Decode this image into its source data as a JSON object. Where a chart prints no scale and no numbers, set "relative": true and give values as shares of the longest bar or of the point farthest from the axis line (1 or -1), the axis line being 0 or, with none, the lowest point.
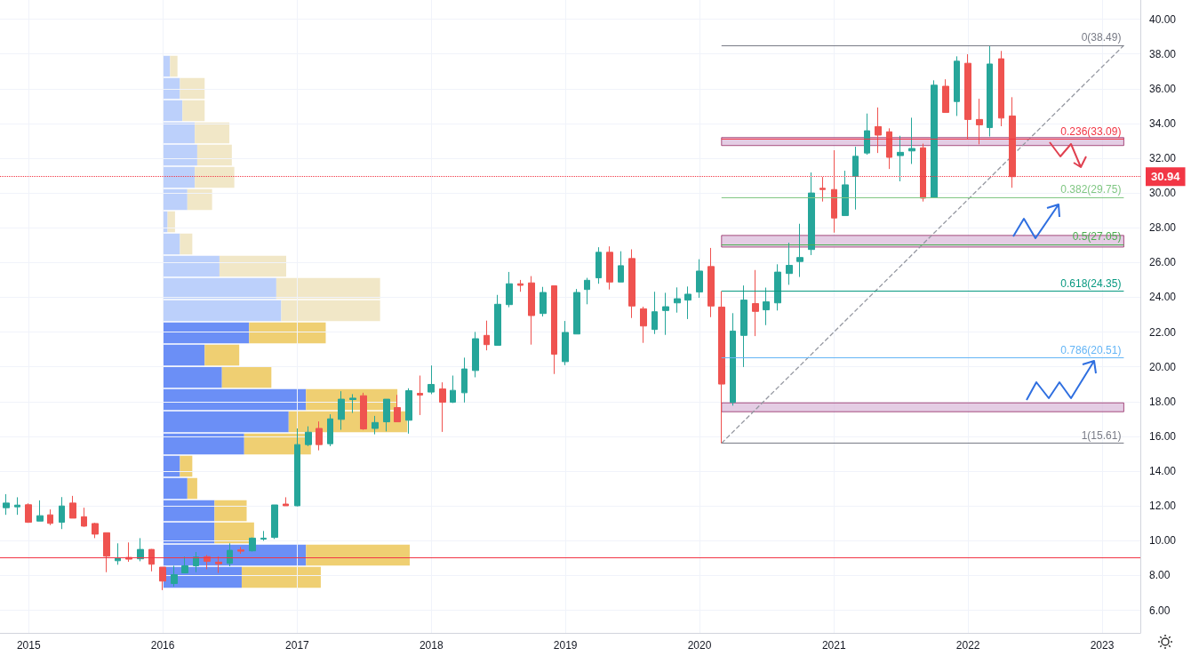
{
  "chart_data": [
    {
      "type": "candlestick",
      "x": [
        "2014-11",
        "2014-12",
        "2015-01",
        "2015-02",
        "2015-03",
        "2015-04",
        "2015-05",
        "2015-06",
        "2015-07",
        "2015-08",
        "2015-09",
        "2015-10",
        "2015-11",
        "2015-12",
        "2016-01",
        "2016-02",
        "2016-03",
        "2016-04",
        "2016-05",
        "2016-06",
        "2016-07",
        "2016-08",
        "2016-09",
        "2016-10",
        "2016-11",
        "2016-12",
        "2017-01",
        "2017-02",
        "2017-03",
        "2017-04",
        "2017-05",
        "2017-06",
        "2017-07",
        "2017-08",
        "2017-09",
        "2017-10",
        "2017-11",
        "2017-12",
        "2018-01",
        "2018-02",
        "2018-03",
        "2018-04",
        "2018-05",
        "2018-06",
        "2018-07",
        "2018-08",
        "2018-09",
        "2018-10",
        "2018-11",
        "2018-12",
        "2019-01",
        "2019-02",
        "2019-03",
        "2019-04",
        "2019-05",
        "2019-06",
        "2019-07",
        "2019-08",
        "2019-09",
        "2019-10",
        "2019-11",
        "2019-12",
        "2020-01",
        "2020-02",
        "2020-03",
        "2020-04",
        "2020-05",
        "2020-06",
        "2020-07",
        "2020-08",
        "2020-09",
        "2020-10",
        "2020-11",
        "2020-12",
        "2021-01",
        "2021-02",
        "2021-03",
        "2021-04",
        "2021-05",
        "2021-06",
        "2021-07",
        "2021-08",
        "2021-09",
        "2021-10",
        "2021-11",
        "2021-12",
        "2022-01",
        "2022-02",
        "2022-03",
        "2022-04",
        "2022-05"
      ],
      "ohlc": [
        [
          11.9,
          12.68,
          11.49,
          12.17
        ],
        [
          11.95,
          12.5,
          11.49,
          12.05
        ],
        [
          12.07,
          12.15,
          11.03,
          11.06
        ],
        [
          11.13,
          12.32,
          11.13,
          11.44
        ],
        [
          11.49,
          11.8,
          10.9,
          11.0
        ],
        [
          11.06,
          12.51,
          10.67,
          12.0
        ],
        [
          12.17,
          12.58,
          11.3,
          11.3
        ],
        [
          11.38,
          11.9,
          10.8,
          10.84
        ],
        [
          10.99,
          11.03,
          10.15,
          10.38
        ],
        [
          10.46,
          10.46,
          8.19,
          9.11
        ],
        [
          8.85,
          9.85,
          8.62,
          8.99
        ],
        [
          9.04,
          9.9,
          8.79,
          8.94
        ],
        [
          8.96,
          10.15,
          8.82,
          9.5
        ],
        [
          9.5,
          9.52,
          8.24,
          8.65
        ],
        [
          8.48,
          8.48,
          7.16,
          7.68
        ],
        [
          7.54,
          8.56,
          7.37,
          8.05
        ],
        [
          8.15,
          9.08,
          8.15,
          8.56
        ],
        [
          8.56,
          9.35,
          8.19,
          9.06
        ],
        [
          9.08,
          9.18,
          8.36,
          8.82
        ],
        [
          8.77,
          9.1,
          8.15,
          8.68
        ],
        [
          8.7,
          9.85,
          8.53,
          9.45
        ],
        [
          9.47,
          9.64,
          9.25,
          9.4
        ],
        [
          9.42,
          10.19,
          9.38,
          10.15
        ],
        [
          10.09,
          10.56,
          10.0,
          10.15
        ],
        [
          10.19,
          12.06,
          10.1,
          12.06
        ],
        [
          12.11,
          12.5,
          12.01,
          12.01
        ],
        [
          12.01,
          16.46,
          11.98,
          15.53
        ],
        [
          15.53,
          16.58,
          15.44,
          16.24
        ],
        [
          16.46,
          16.86,
          15.2,
          15.53
        ],
        [
          15.58,
          17.27,
          15.44,
          17.01
        ],
        [
          16.98,
          18.6,
          16.38,
          18.14
        ],
        [
          18.12,
          18.43,
          17.35,
          18.2
        ],
        [
          18.34,
          18.51,
          16.38,
          16.43
        ],
        [
          16.46,
          17.18,
          16.12,
          16.8
        ],
        [
          16.84,
          18.14,
          16.29,
          18.14
        ],
        [
          17.66,
          18.39,
          16.84,
          16.84
        ],
        [
          16.93,
          18.77,
          16.16,
          18.63
        ],
        [
          18.48,
          19.5,
          17.23,
          18.38
        ],
        [
          18.55,
          20.08,
          18.43,
          18.99
        ],
        [
          18.73,
          19.11,
          16.26,
          17.97
        ],
        [
          17.97,
          19.5,
          17.92,
          18.65
        ],
        [
          18.51,
          20.53,
          17.95,
          19.88
        ],
        [
          19.79,
          22.01,
          19.4,
          21.62
        ],
        [
          21.81,
          22.66,
          20.95,
          21.28
        ],
        [
          21.24,
          24.14,
          21.24,
          23.6
        ],
        [
          23.58,
          25.46,
          23.43,
          24.78
        ],
        [
          24.78,
          25.0,
          24.32,
          24.69
        ],
        [
          24.83,
          25.22,
          21.28,
          22.95
        ],
        [
          23.07,
          24.6,
          22.9,
          24.28
        ],
        [
          24.66,
          24.66,
          19.59,
          20.73
        ],
        [
          20.3,
          22.64,
          20.1,
          21.98
        ],
        [
          21.89,
          24.48,
          21.89,
          24.28
        ],
        [
          24.45,
          25.12,
          23.6,
          24.98
        ],
        [
          25.12,
          26.88,
          24.78,
          26.59
        ],
        [
          26.59,
          26.93,
          24.45,
          24.88
        ],
        [
          24.88,
          26.65,
          24.88,
          25.82
        ],
        [
          26.23,
          26.76,
          22.81,
          23.5
        ],
        [
          23.34,
          23.46,
          21.38,
          22.35
        ],
        [
          22.15,
          24.32,
          21.89,
          23.17
        ],
        [
          23.24,
          24.26,
          21.84,
          23.46
        ],
        [
          23.68,
          24.57,
          23.12,
          23.92
        ],
        [
          23.84,
          24.62,
          22.75,
          24.18
        ],
        [
          24.31,
          26.19,
          23.97,
          25.51
        ],
        [
          25.77,
          26.84,
          22.86,
          23.5
        ],
        [
          23.44,
          24.35,
          15.61,
          19.01
        ],
        [
          17.96,
          23.09,
          17.77,
          22.06
        ],
        [
          21.81,
          24.68,
          19.99,
          23.84
        ],
        [
          23.64,
          25.57,
          21.77,
          23.19
        ],
        [
          23.28,
          24.56,
          22.4,
          23.74
        ],
        [
          23.68,
          25.9,
          23.24,
          25.45
        ],
        [
          25.37,
          27.14,
          24.72,
          25.84
        ],
        [
          26.06,
          28.23,
          25.17,
          26.29
        ],
        [
          26.75,
          31.18,
          26.43,
          30.0
        ],
        [
          30.27,
          30.92,
          29.51,
          30.2
        ],
        [
          30.2,
          32.46,
          27.72,
          28.56
        ],
        [
          28.7,
          31.28,
          28.7,
          30.47
        ],
        [
          30.96,
          32.66,
          29.05,
          32.11
        ],
        [
          32.3,
          34.57,
          32.2,
          33.58
        ],
        [
          33.82,
          34.92,
          32.3,
          33.33
        ],
        [
          33.52,
          33.72,
          31.38,
          32.05
        ],
        [
          32.15,
          33.29,
          30.67,
          32.34
        ],
        [
          32.42,
          34.33,
          31.67,
          32.56
        ],
        [
          32.6,
          32.84,
          29.51,
          29.7
        ],
        [
          29.75,
          36.48,
          29.75,
          36.2
        ],
        [
          36.14,
          36.54,
          34.63,
          34.63
        ],
        [
          35.26,
          37.86,
          34.43,
          37.58
        ],
        [
          37.46,
          37.98,
          33.09,
          34.23
        ],
        [
          34.23,
          35.42,
          32.8,
          33.92
        ],
        [
          33.76,
          38.49,
          33.25,
          37.42
        ],
        [
          37.72,
          38.17,
          33.84,
          34.31
        ],
        [
          34.43,
          35.51,
          30.3,
          30.94
        ]
      ],
      "series": [
        {
          "type": "line",
          "x": [
            "2020-03",
            "2023-03"
          ],
          "values": [
            15.61,
            38.49
          ],
          "color": "#9598a1",
          "line_style": "dashed",
          "marker": "none"
        }
      ],
      "xlim": [
        "2014-10-15",
        "2023-04-15"
      ],
      "xticks": [
        {
          "value": "2015",
          "label": "2015"
        },
        {
          "value": "2016",
          "label": "2016"
        },
        {
          "value": "2017",
          "label": "2017"
        },
        {
          "value": "2018",
          "label": "2018"
        },
        {
          "value": "2019",
          "label": "2019"
        },
        {
          "value": "2020",
          "label": "2020"
        },
        {
          "value": "2021",
          "label": "2021"
        },
        {
          "value": "2022",
          "label": "2022"
        },
        {
          "value": "2023",
          "label": "2023"
        }
      ],
      "ylim": [
        4.7,
        41.1
      ],
      "yticks": [
        {
          "value": 6,
          "label": "6.00"
        },
        {
          "value": 8,
          "label": "8.00"
        },
        {
          "value": 10,
          "label": "10.00"
        },
        {
          "value": 12,
          "label": "12.00"
        },
        {
          "value": 14,
          "label": "14.00"
        },
        {
          "value": 16,
          "label": "16.00"
        },
        {
          "value": 18,
          "label": "18.00"
        },
        {
          "value": 20,
          "label": "20.00"
        },
        {
          "value": 22,
          "label": "22.00"
        },
        {
          "value": 24,
          "label": "24.00"
        },
        {
          "value": 26,
          "label": "26.00"
        },
        {
          "value": 28,
          "label": "28.00"
        },
        {
          "value": 30,
          "label": "30.00"
        },
        {
          "value": 32,
          "label": "32.00"
        },
        {
          "value": 34,
          "label": "34.00"
        },
        {
          "value": 36,
          "label": "36.00"
        },
        {
          "value": 38,
          "label": "38.00"
        },
        {
          "value": 40,
          "label": "40.00"
        }
      ],
      "ref_lines": [
        {
          "axis": "y",
          "value": 38.49,
          "label": "0(38.49)",
          "color": "#787b86"
        },
        {
          "axis": "y",
          "value": 33.09,
          "label": "0.236(33.09)",
          "color": "#f23645"
        },
        {
          "axis": "y",
          "value": 29.75,
          "label": "0.382(29.75)",
          "color": "#81c784"
        },
        {
          "axis": "y",
          "value": 27.05,
          "label": "0.5(27.05)",
          "color": "#4caf50"
        },
        {
          "axis": "y",
          "value": 24.35,
          "label": "0.618(24.35)",
          "color": "#089981"
        },
        {
          "axis": "y",
          "value": 20.51,
          "label": "0.786(20.51)",
          "color": "#64b5f6"
        },
        {
          "axis": "y",
          "value": 15.61,
          "label": "1(15.61)",
          "color": "#787b86"
        },
        {
          "axis": "y",
          "value": 30.94,
          "label": "30.94",
          "color": "#f23645",
          "line_style": "dotted"
        },
        {
          "axis": "y",
          "value": 9.05,
          "color": "#f23645"
        }
      ],
      "bands": [
        {
          "axis": "y",
          "from": 26.89,
          "to": 27.56,
          "color": "#d9b8d8"
        },
        {
          "axis": "y",
          "from": 17.42,
          "to": 17.93,
          "color": "#d9b8d8"
        },
        {
          "axis": "y",
          "from": 32.73,
          "to": 33.19,
          "color": "#d9b8d8"
        }
      ],
      "grid": true
    },
    {
      "type": "bar",
      "orientation": "horizontal",
      "stacked": true,
      "relative": true,
      "categories": [
        null,
        null,
        null,
        null,
        null,
        null,
        null,
        null,
        null,
        null,
        null,
        null,
        null,
        null,
        null,
        null,
        null,
        null,
        null,
        null,
        null,
        null,
        null,
        null
      ],
      "series": [
        {
          "values": [
            0.03,
            0.07,
            0.08,
            0.13,
            0.14,
            0.13,
            0.1,
            0.02,
            0.07,
            0.23,
            0.46,
            0.48,
            0.35,
            0.17,
            0.24,
            0.58,
            0.51,
            0.33,
            0.07,
            0.1,
            0.21,
            0.21,
            0.58,
            0.32
          ],
          "colors": [
            "#bcd0fb",
            "#bcd0fb",
            "#bcd0fb",
            "#bcd0fb",
            "#bcd0fb",
            "#bcd0fb",
            "#bcd0fb",
            "#bcd0fb",
            "#bcd0fb",
            "#bcd0fb",
            "#bcd0fb",
            "#bcd0fb",
            "#6b8ff6",
            "#6b8ff6",
            "#6b8ff6",
            "#6b8ff6",
            "#6b8ff6",
            "#6b8ff6",
            "#6b8ff6",
            "#6b8ff6",
            "#6b8ff6",
            "#6b8ff6",
            "#6b8ff6",
            "#6b8ff6"
          ]
        },
        {
          "values": [
            0.03,
            0.1,
            0.09,
            0.14,
            0.14,
            0.16,
            0.1,
            0.03,
            0.05,
            0.27,
            0.42,
            0.4,
            0.31,
            0.14,
            0.2,
            0.37,
            0.48,
            0.27,
            0.05,
            0.04,
            0.13,
            0.16,
            0.42,
            0.32
          ],
          "colors": [
            "#f1e7c7",
            "#f1e7c7",
            "#f1e7c7",
            "#f1e7c7",
            "#f1e7c7",
            "#f1e7c7",
            "#f1e7c7",
            "#f1e7c7",
            "#f1e7c7",
            "#f1e7c7",
            "#f1e7c7",
            "#f1e7c7",
            "#efcf72",
            "#efcf72",
            "#efcf72",
            "#efcf72",
            "#efcf72",
            "#efcf72",
            "#efcf72",
            "#efcf72",
            "#efcf72",
            "#efcf72",
            "#efcf72",
            "#efcf72"
          ]
        }
      ]
    }
  ]
}
